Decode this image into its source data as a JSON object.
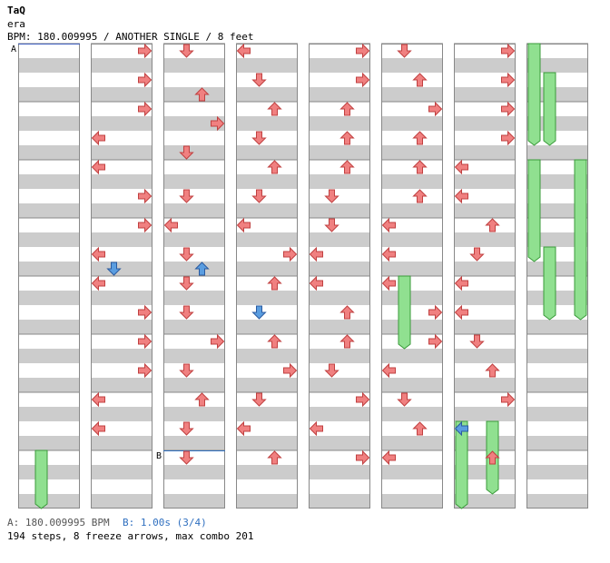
{
  "header": {
    "artist": "TaQ",
    "title": "era",
    "info": "BPM: 180.009995 / ANOTHER SINGLE / 8 feet"
  },
  "chart_data": {
    "type": "step-chart",
    "markers": [
      {
        "label": "A",
        "column": 0,
        "row": 0,
        "text": "A: 180.009995 BPM",
        "color": "#4060c0"
      },
      {
        "label": "B",
        "column": 2,
        "row": 28,
        "text": "B: 1.00s (3/4)",
        "color": "#3070c0"
      }
    ],
    "lanes": [
      "left",
      "down",
      "up",
      "right"
    ],
    "note_colors": {
      "quarter": "#f08080",
      "eighth": "#5a9de0",
      "freeze": "#90e090"
    },
    "columns": 8,
    "rows_per_column": 32,
    "notes": [
      {
        "c": 1,
        "r": 0,
        "l": 3,
        "k": "q"
      },
      {
        "c": 1,
        "r": 2,
        "l": 3,
        "k": "q"
      },
      {
        "c": 1,
        "r": 4,
        "l": 3,
        "k": "q"
      },
      {
        "c": 1,
        "r": 6,
        "l": 0,
        "k": "q"
      },
      {
        "c": 1,
        "r": 8,
        "l": 0,
        "k": "q"
      },
      {
        "c": 1,
        "r": 10,
        "l": 3,
        "k": "q"
      },
      {
        "c": 1,
        "r": 12,
        "l": 3,
        "k": "q"
      },
      {
        "c": 1,
        "r": 14,
        "l": 0,
        "k": "q"
      },
      {
        "c": 1,
        "r": 15,
        "l": 1,
        "k": "e"
      },
      {
        "c": 1,
        "r": 16,
        "l": 0,
        "k": "q"
      },
      {
        "c": 1,
        "r": 18,
        "l": 3,
        "k": "q"
      },
      {
        "c": 1,
        "r": 20,
        "l": 3,
        "k": "q"
      },
      {
        "c": 1,
        "r": 22,
        "l": 3,
        "k": "q"
      },
      {
        "c": 1,
        "r": 24,
        "l": 0,
        "k": "q"
      },
      {
        "c": 1,
        "r": 26,
        "l": 0,
        "k": "q"
      },
      {
        "c": 2,
        "r": 0,
        "l": 1,
        "k": "q"
      },
      {
        "c": 2,
        "r": 3,
        "l": 2,
        "k": "q"
      },
      {
        "c": 2,
        "r": 5,
        "l": 3,
        "k": "q"
      },
      {
        "c": 2,
        "r": 7,
        "l": 1,
        "k": "q"
      },
      {
        "c": 2,
        "r": 10,
        "l": 1,
        "k": "q"
      },
      {
        "c": 2,
        "r": 12,
        "l": 0,
        "k": "q"
      },
      {
        "c": 2,
        "r": 14,
        "l": 1,
        "k": "q"
      },
      {
        "c": 2,
        "r": 15,
        "l": 2,
        "k": "e"
      },
      {
        "c": 2,
        "r": 16,
        "l": 1,
        "k": "q"
      },
      {
        "c": 2,
        "r": 18,
        "l": 1,
        "k": "q"
      },
      {
        "c": 2,
        "r": 20,
        "l": 3,
        "k": "q"
      },
      {
        "c": 2,
        "r": 22,
        "l": 1,
        "k": "q"
      },
      {
        "c": 2,
        "r": 24,
        "l": 2,
        "k": "q"
      },
      {
        "c": 2,
        "r": 26,
        "l": 1,
        "k": "q"
      },
      {
        "c": 2,
        "r": 28,
        "l": 1,
        "k": "q"
      },
      {
        "c": 3,
        "r": 0,
        "l": 0,
        "k": "q"
      },
      {
        "c": 3,
        "r": 2,
        "l": 1,
        "k": "q"
      },
      {
        "c": 3,
        "r": 4,
        "l": 2,
        "k": "q"
      },
      {
        "c": 3,
        "r": 6,
        "l": 1,
        "k": "q"
      },
      {
        "c": 3,
        "r": 8,
        "l": 2,
        "k": "q"
      },
      {
        "c": 3,
        "r": 10,
        "l": 1,
        "k": "q"
      },
      {
        "c": 3,
        "r": 12,
        "l": 0,
        "k": "q"
      },
      {
        "c": 3,
        "r": 14,
        "l": 3,
        "k": "q"
      },
      {
        "c": 3,
        "r": 16,
        "l": 2,
        "k": "q"
      },
      {
        "c": 3,
        "r": 18,
        "l": 1,
        "k": "e"
      },
      {
        "c": 3,
        "r": 20,
        "l": 2,
        "k": "q"
      },
      {
        "c": 3,
        "r": 22,
        "l": 3,
        "k": "q"
      },
      {
        "c": 3,
        "r": 24,
        "l": 1,
        "k": "q"
      },
      {
        "c": 3,
        "r": 26,
        "l": 0,
        "k": "q"
      },
      {
        "c": 3,
        "r": 28,
        "l": 2,
        "k": "q"
      },
      {
        "c": 4,
        "r": 0,
        "l": 3,
        "k": "q"
      },
      {
        "c": 4,
        "r": 2,
        "l": 3,
        "k": "q"
      },
      {
        "c": 4,
        "r": 4,
        "l": 2,
        "k": "q"
      },
      {
        "c": 4,
        "r": 6,
        "l": 2,
        "k": "q"
      },
      {
        "c": 4,
        "r": 8,
        "l": 2,
        "k": "q"
      },
      {
        "c": 4,
        "r": 10,
        "l": 1,
        "k": "q"
      },
      {
        "c": 4,
        "r": 12,
        "l": 1,
        "k": "q"
      },
      {
        "c": 4,
        "r": 14,
        "l": 0,
        "k": "q"
      },
      {
        "c": 4,
        "r": 16,
        "l": 0,
        "k": "q"
      },
      {
        "c": 4,
        "r": 18,
        "l": 2,
        "k": "q"
      },
      {
        "c": 4,
        "r": 20,
        "l": 2,
        "k": "q"
      },
      {
        "c": 4,
        "r": 22,
        "l": 1,
        "k": "q"
      },
      {
        "c": 4,
        "r": 24,
        "l": 3,
        "k": "q"
      },
      {
        "c": 4,
        "r": 26,
        "l": 0,
        "k": "q"
      },
      {
        "c": 4,
        "r": 28,
        "l": 3,
        "k": "q"
      },
      {
        "c": 5,
        "r": 0,
        "l": 1,
        "k": "q"
      },
      {
        "c": 5,
        "r": 2,
        "l": 2,
        "k": "q"
      },
      {
        "c": 5,
        "r": 4,
        "l": 3,
        "k": "q"
      },
      {
        "c": 5,
        "r": 6,
        "l": 2,
        "k": "q"
      },
      {
        "c": 5,
        "r": 8,
        "l": 2,
        "k": "q"
      },
      {
        "c": 5,
        "r": 10,
        "l": 2,
        "k": "q"
      },
      {
        "c": 5,
        "r": 12,
        "l": 0,
        "k": "q"
      },
      {
        "c": 5,
        "r": 14,
        "l": 0,
        "k": "q"
      },
      {
        "c": 5,
        "r": 16,
        "l": 0,
        "k": "q"
      },
      {
        "c": 5,
        "r": 18,
        "l": 3,
        "k": "q"
      },
      {
        "c": 5,
        "r": 20,
        "l": 3,
        "k": "q"
      },
      {
        "c": 5,
        "r": 22,
        "l": 0,
        "k": "q"
      },
      {
        "c": 5,
        "r": 24,
        "l": 1,
        "k": "q"
      },
      {
        "c": 5,
        "r": 26,
        "l": 2,
        "k": "q"
      },
      {
        "c": 5,
        "r": 28,
        "l": 0,
        "k": "q"
      },
      {
        "c": 6,
        "r": 0,
        "l": 3,
        "k": "q"
      },
      {
        "c": 6,
        "r": 2,
        "l": 3,
        "k": "q"
      },
      {
        "c": 6,
        "r": 4,
        "l": 3,
        "k": "q"
      },
      {
        "c": 6,
        "r": 6,
        "l": 3,
        "k": "q"
      },
      {
        "c": 6,
        "r": 8,
        "l": 0,
        "k": "q"
      },
      {
        "c": 6,
        "r": 10,
        "l": 0,
        "k": "q"
      },
      {
        "c": 6,
        "r": 12,
        "l": 2,
        "k": "q"
      },
      {
        "c": 6,
        "r": 14,
        "l": 1,
        "k": "q"
      },
      {
        "c": 6,
        "r": 16,
        "l": 0,
        "k": "q"
      },
      {
        "c": 6,
        "r": 18,
        "l": 0,
        "k": "q"
      },
      {
        "c": 6,
        "r": 20,
        "l": 1,
        "k": "q"
      },
      {
        "c": 6,
        "r": 22,
        "l": 2,
        "k": "q"
      },
      {
        "c": 6,
        "r": 24,
        "l": 3,
        "k": "q"
      },
      {
        "c": 6,
        "r": 26,
        "l": 0,
        "k": "e"
      },
      {
        "c": 6,
        "r": 28,
        "l": 2,
        "k": "q"
      }
    ],
    "freezes": [
      {
        "c": 0,
        "r_start": 28,
        "r_end": 31,
        "l": 1
      },
      {
        "c": 5,
        "r_start": 16,
        "r_end": 20,
        "l": 1
      },
      {
        "c": 6,
        "r_start": 26,
        "r_end": 31,
        "l": 0
      },
      {
        "c": 6,
        "r_start": 26,
        "r_end": 30,
        "l": 2
      },
      {
        "c": 7,
        "r_start": 0,
        "r_end": 6,
        "l": 0
      },
      {
        "c": 7,
        "r_start": 2,
        "r_end": 6,
        "l": 1
      },
      {
        "c": 7,
        "r_start": 8,
        "r_end": 14,
        "l": 0
      },
      {
        "c": 7,
        "r_start": 8,
        "r_end": 18,
        "l": 3
      },
      {
        "c": 7,
        "r_start": 14,
        "r_end": 18,
        "l": 1
      }
    ]
  },
  "footer": {
    "bpm_text": "A: 180.009995 BPM",
    "stop_text": "B: 1.00s (3/4)",
    "summary": "194 steps, 8 freeze arrows, max combo 201"
  }
}
